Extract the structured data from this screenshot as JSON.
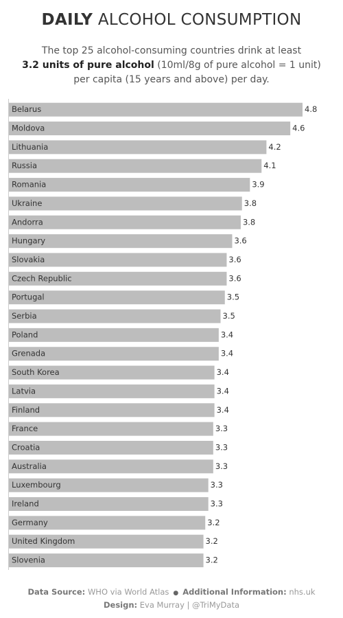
{
  "chart_data": {
    "type": "bar",
    "title_bold": "DAILY",
    "title": "ALCOHOL CONSUMPTION",
    "subtitle": [
      "The top 25 alcohol-consuming countries drink at least",
      "3.2 units of pure alcohol",
      "(10ml/8g of pure alcohol = 1 unit) per capita (15 years and above) per day."
    ],
    "categories": [
      "Belarus",
      "Moldova",
      "Lithuania",
      "Russia",
      "Romania",
      "Ukraine",
      "Andorra",
      "Hungary",
      "Slovakia",
      "Czech Republic",
      "Portugal",
      "Serbia",
      "Poland",
      "Grenada",
      "South Korea",
      "Latvia",
      "Finland",
      "France",
      "Croatia",
      "Australia",
      "Luxembourg",
      "Ireland",
      "Germany",
      "United Kingdom",
      "Slovenia"
    ],
    "values": [
      4.8,
      4.6,
      4.21,
      4.13,
      3.94,
      3.81,
      3.79,
      3.65,
      3.56,
      3.56,
      3.53,
      3.46,
      3.43,
      3.43,
      3.36,
      3.36,
      3.36,
      3.34,
      3.34,
      3.34,
      3.26,
      3.26,
      3.21,
      3.18,
      3.18
    ],
    "value_labels": [
      "4.8",
      "4.6",
      "4.2",
      "4.1",
      "3.9",
      "3.8",
      "3.8",
      "3.6",
      "3.6",
      "3.6",
      "3.5",
      "3.5",
      "3.4",
      "3.4",
      "3.4",
      "3.4",
      "3.4",
      "3.3",
      "3.3",
      "3.3",
      "3.3",
      "3.3",
      "3.2",
      "3.2",
      "3.2"
    ],
    "color": "#bdbdbd",
    "footer": {
      "source_label": "Data Source:",
      "source": "WHO via World Atlas",
      "info_label": "Additional Information:",
      "info": "nhs.uk",
      "design_label": "Design:",
      "design": "Eva Murray | @TriMyData"
    }
  }
}
